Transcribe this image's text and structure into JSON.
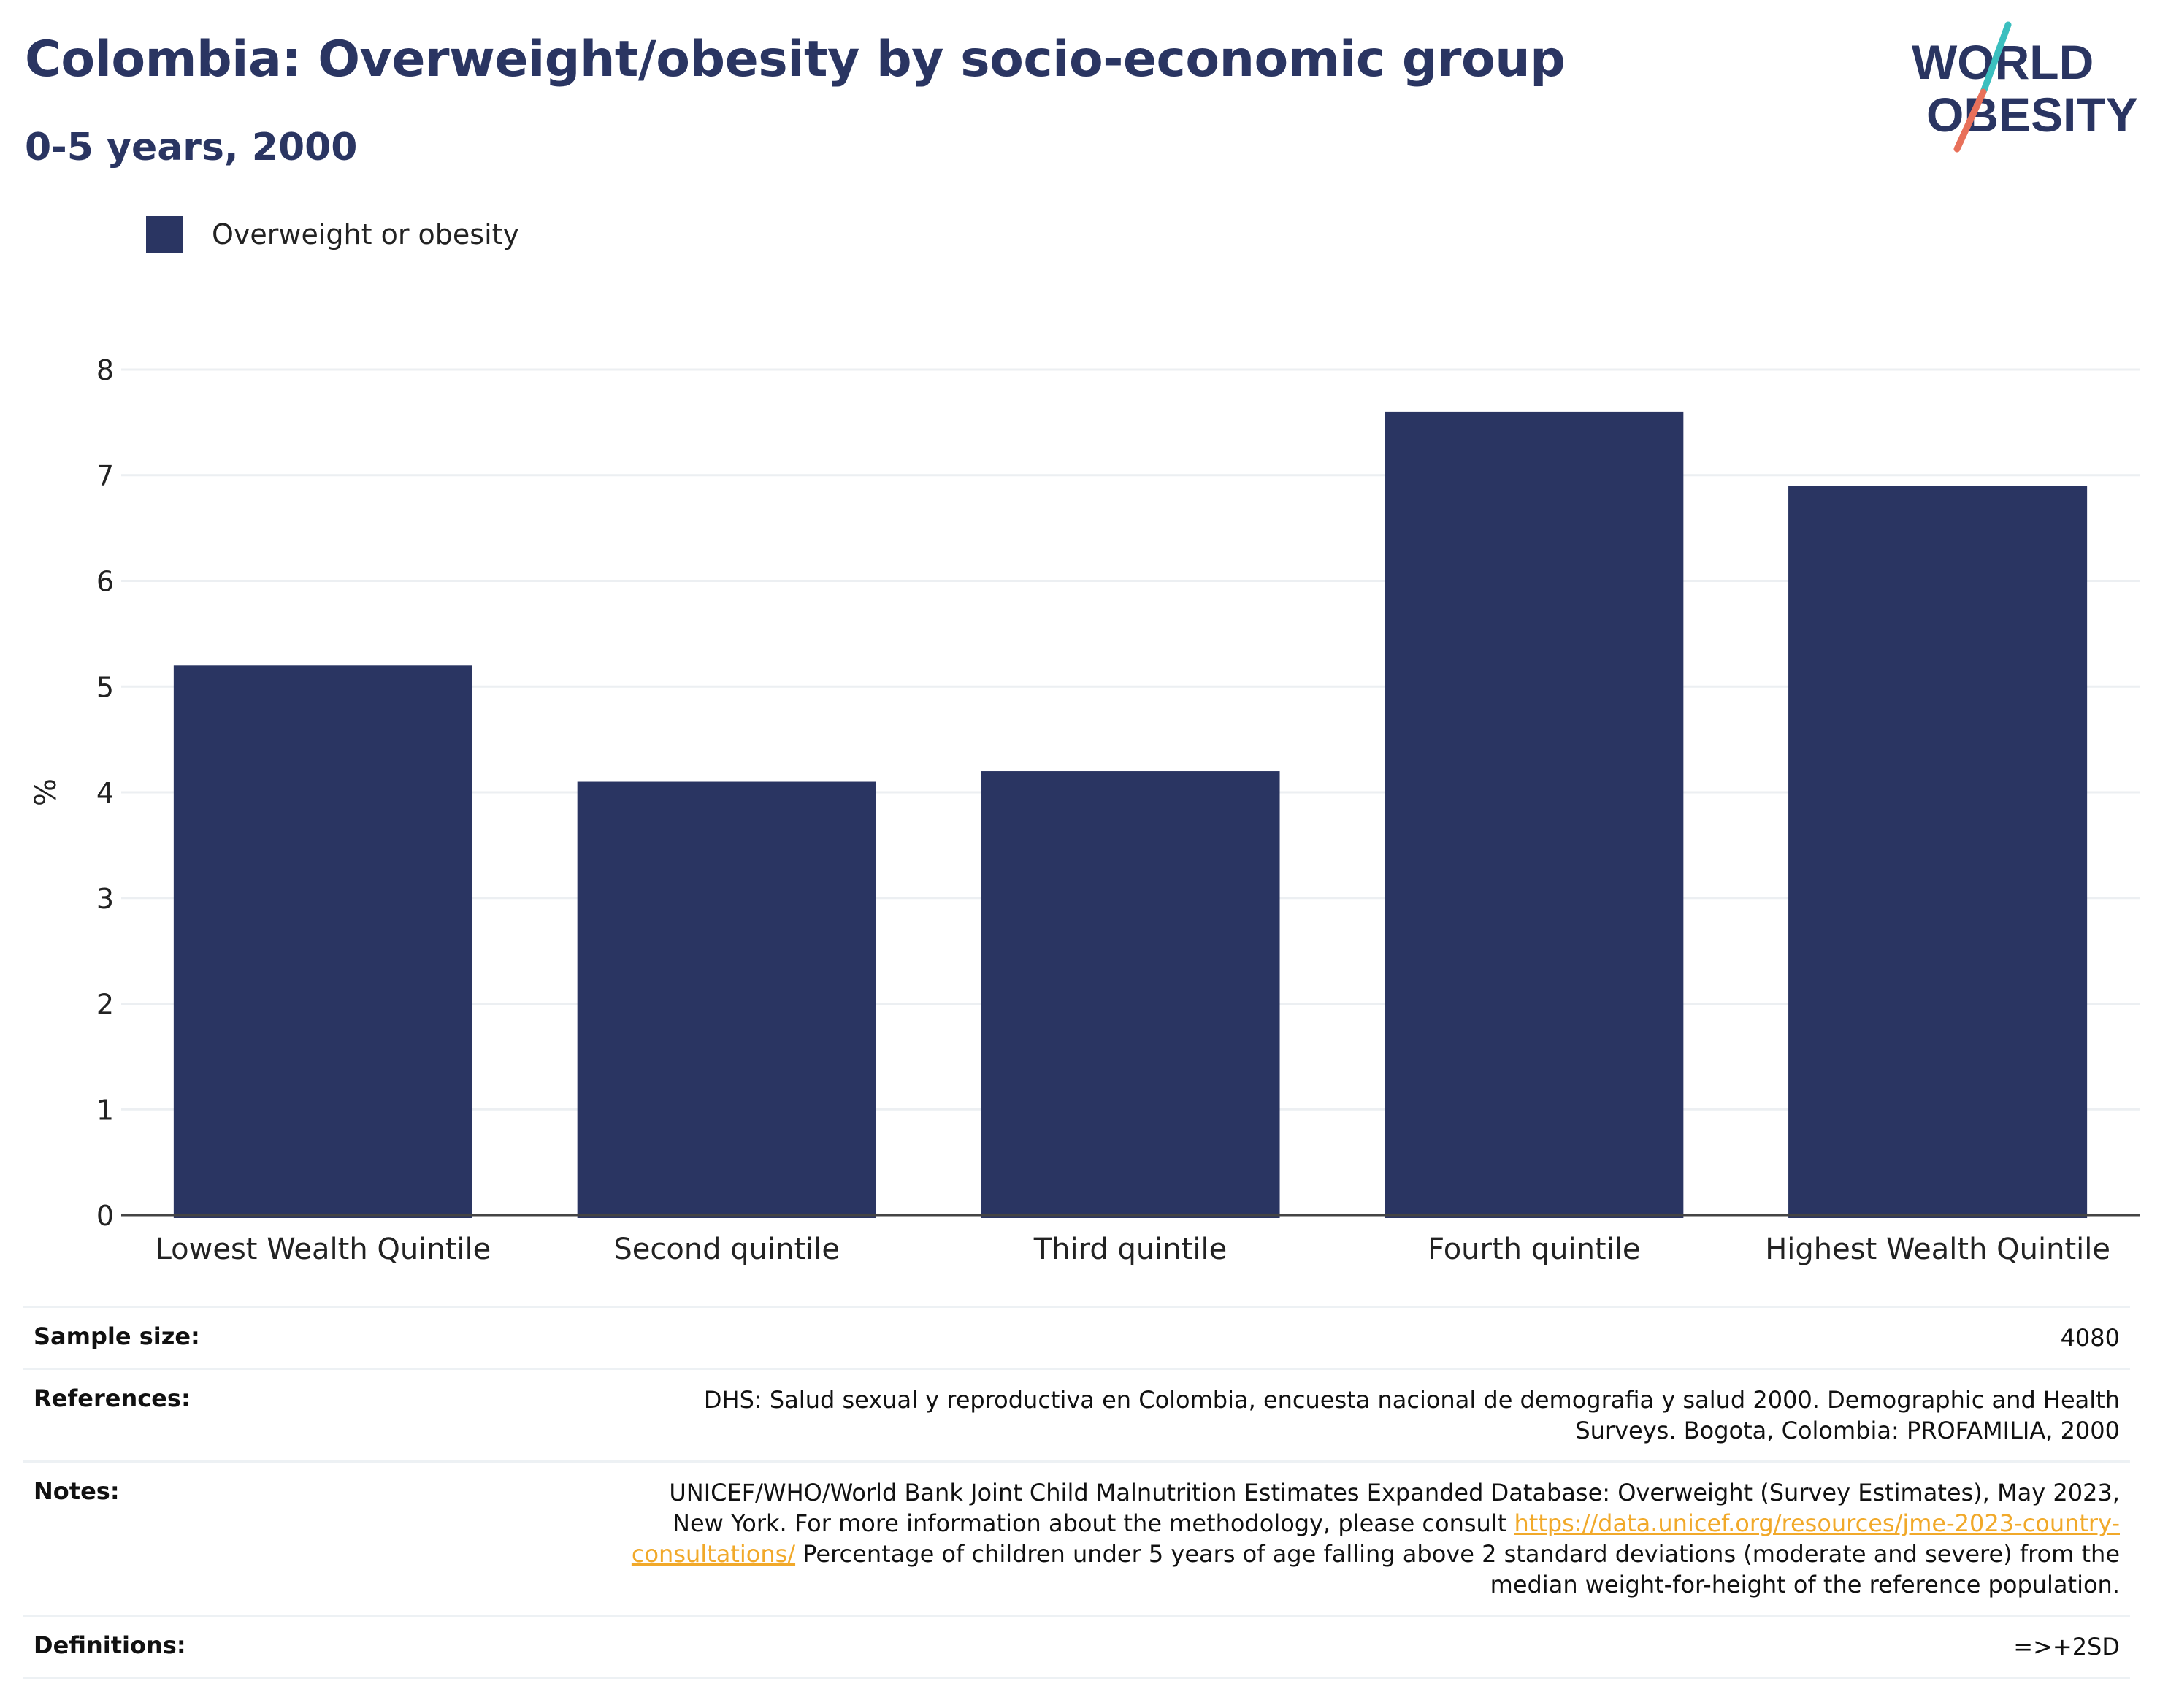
{
  "header": {
    "title": "Colombia: Overweight/obesity by socio-economic group",
    "subtitle": "0-5 years, 2000"
  },
  "logo": {
    "line1": "WORLD",
    "line2": "OBESITY",
    "slash_colors": [
      "#3bbfbf",
      "#e8705a"
    ],
    "text_color": "#2a3562"
  },
  "chart_data": {
    "type": "bar",
    "categories": [
      "Lowest Wealth Quintile",
      "Second quintile",
      "Third quintile",
      "Fourth quintile",
      "Highest Wealth Quintile"
    ],
    "series": [
      {
        "name": "Overweight or obesity",
        "color": "#2a3562",
        "values": [
          5.2,
          4.1,
          4.2,
          7.6,
          6.9
        ]
      }
    ],
    "title": "",
    "xlabel": "",
    "ylabel": "%",
    "ylim": [
      0,
      8
    ],
    "yticks": [
      0,
      1,
      2,
      3,
      4,
      5,
      6,
      7,
      8
    ],
    "grid": true,
    "legend_position": "top-left"
  },
  "meta": {
    "sample_size_label": "Sample size:",
    "sample_size_value": "4080",
    "references_label": "References:",
    "references_value": "DHS: Salud sexual y reproductiva en Colombia, encuesta nacional de demografia y salud 2000. Demographic and Health Surveys. Bogota, Colombia: PROFAMILIA, 2000",
    "notes_label": "Notes:",
    "notes_text_before": "UNICEF/WHO/World Bank Joint Child Malnutrition Estimates Expanded Database: Overweight (Survey Estimates), May 2023, New York. For more information about the methodology, please consult ",
    "notes_link": "https://data.unicef.org/resources/jme-2023-country-consultations/",
    "notes_text_after": " Percentage of children under 5 years of age falling above 2 standard deviations (moderate and severe) from the median weight-for-height of the reference population.",
    "definitions_label": "Definitions:",
    "definitions_value": "=>+2SD"
  }
}
